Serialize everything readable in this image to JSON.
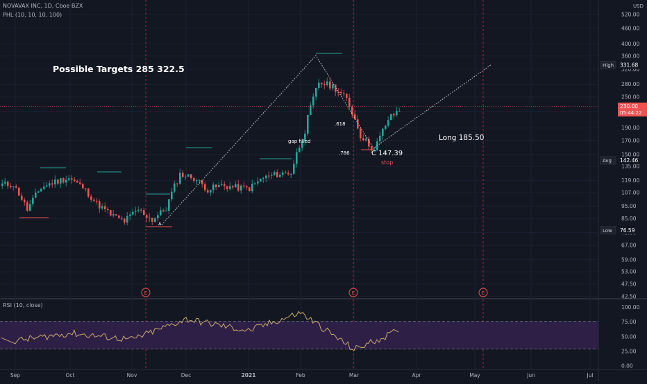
{
  "header": {
    "symbol_line": "NOVAVAX INC, 1D, Cboe BZX",
    "indicator_line": "PHL (10, 10, 10, 100)",
    "currency": "USD"
  },
  "rsi_panel": {
    "label": "RSI (10, close)",
    "ticks": [
      "100.00",
      "75.00",
      "50.00",
      "25.00",
      "0.00"
    ],
    "upper_band": 75,
    "lower_band": 30
  },
  "price_axis": {
    "ticks": [
      "520.00",
      "460.00",
      "400.00",
      "360.00",
      "320.00",
      "280.00",
      "250.00",
      "220.00",
      "190.00",
      "170.00",
      "150.00",
      "135.00",
      "119.00",
      "107.00",
      "95.00",
      "85.00",
      "75.00",
      "67.00",
      "59.00",
      "53.00",
      "47.50",
      "42.50"
    ]
  },
  "price_labels": {
    "high": {
      "label": "High",
      "value": "331.68"
    },
    "last": {
      "value": "230.00",
      "countdown": "05:44:22"
    },
    "avg": {
      "label": "Avg",
      "value": "142.46"
    },
    "low": {
      "label": "Low",
      "value": "76.59"
    }
  },
  "time_axis": [
    "Sep",
    "Oct",
    "Nov",
    "Dec",
    "2021",
    "Feb",
    "Mar",
    "Apr",
    "May",
    "Jun",
    "Jul"
  ],
  "annotations": {
    "targets": "Possible Targets  285  322.5",
    "gap": "gap filled",
    "fib618": ".618",
    "fib786": ".786",
    "point_c": "C  147.39",
    "stop": "stop",
    "long": "Long 185.50",
    "point_a": "A",
    "earnings_marker": "E"
  },
  "colors": {
    "background": "#131722",
    "up": "#26a69a",
    "down": "#ef5350",
    "rsi_line": "#c9a96b",
    "rsi_band": "#2e1f47"
  },
  "chart_data": [
    {
      "type": "candlestick",
      "title": "NOVAVAX INC, 1D, Cboe BZX",
      "y_scale": "log",
      "ylim": [
        42.5,
        520
      ],
      "x": [
        "2020-08-31",
        "2020-09-07",
        "2020-09-14",
        "2020-09-21",
        "2020-09-28",
        "2020-10-05",
        "2020-10-12",
        "2020-10-19",
        "2020-10-26",
        "2020-11-02",
        "2020-11-09",
        "2020-11-16",
        "2020-11-23",
        "2020-11-30",
        "2020-12-07",
        "2020-12-14",
        "2020-12-21",
        "2020-12-28",
        "2021-01-04",
        "2021-01-11",
        "2021-01-18",
        "2021-01-25",
        "2021-02-01",
        "2021-02-08",
        "2021-02-15",
        "2021-02-22",
        "2021-03-01",
        "2021-03-08",
        "2021-03-15",
        "2021-03-22"
      ],
      "close": [
        115,
        92,
        112,
        118,
        122,
        112,
        97,
        88,
        83,
        92,
        84,
        93,
        126,
        122,
        110,
        114,
        112,
        111,
        122,
        126,
        128,
        185,
        285,
        275,
        245,
        178,
        155,
        205,
        228,
        230
      ],
      "markers": {
        "high": 331.68,
        "low": 76.59,
        "avg": 142.46,
        "last": 230.0,
        "point_c": 147.39,
        "long_entry": 185.5,
        "targets": [
          285,
          322.5
        ]
      }
    },
    {
      "type": "line",
      "title": "RSI (10, close)",
      "ylim": [
        0,
        100
      ],
      "x": [
        "Sep",
        "Oct",
        "Nov",
        "Dec",
        "2021",
        "Feb",
        "Mar",
        "Apr"
      ],
      "values": [
        43,
        56,
        45,
        80,
        60,
        91,
        28,
        58
      ],
      "bands": [
        30,
        75
      ]
    }
  ]
}
